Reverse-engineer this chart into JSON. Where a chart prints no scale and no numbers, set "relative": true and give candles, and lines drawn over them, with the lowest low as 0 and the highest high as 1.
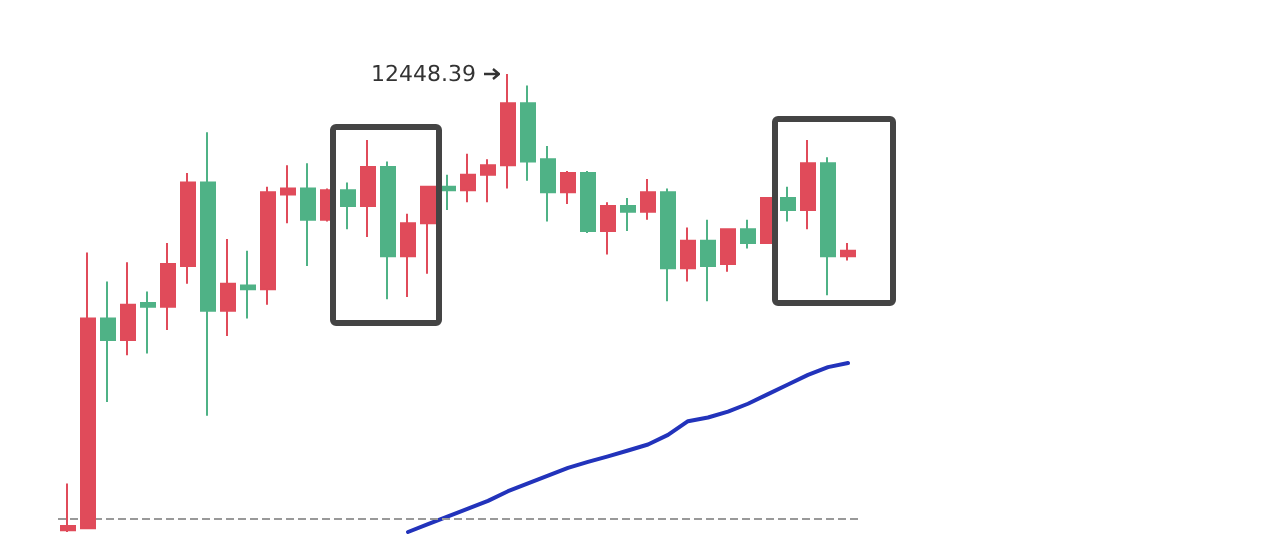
{
  "chart_data": {
    "type": "candlestick",
    "relative": true,
    "marker": "none",
    "categories": [
      null,
      null,
      null,
      null,
      null,
      null,
      null,
      null,
      null,
      null,
      null,
      null,
      null,
      null,
      null,
      null,
      null,
      null,
      null,
      null,
      null,
      null,
      null,
      null,
      null,
      null,
      null,
      null,
      null,
      null,
      null,
      null,
      null,
      null,
      null,
      null,
      null,
      null,
      null,
      null
    ],
    "ohlc": [
      [
        0.004,
        0.106,
        0,
        0.013
      ],
      [
        0.008,
        0.61,
        0.008,
        0.466
      ],
      [
        0.466,
        0.547,
        0.284,
        0.419
      ],
      [
        0.419,
        0.589,
        0.386,
        0.496
      ],
      [
        0.5,
        0.525,
        0.39,
        0.492
      ],
      [
        0.492,
        0.631,
        0.441,
        0.585
      ],
      [
        0.581,
        0.784,
        0.542,
        0.763
      ],
      [
        0.763,
        0.873,
        0.254,
        0.483
      ],
      [
        0.483,
        0.64,
        0.428,
        0.542
      ],
      [
        0.538,
        0.614,
        0.466,
        0.53
      ],
      [
        0.53,
        0.754,
        0.496,
        0.742
      ],
      [
        0.737,
        0.801,
        0.674,
        0.75
      ],
      [
        0.75,
        0.805,
        0.581,
        0.682
      ],
      [
        0.682,
        0.75,
        0.678,
        0.746
      ],
      [
        0.746,
        0.763,
        0.661,
        0.712
      ],
      [
        0.712,
        0.856,
        0.644,
        0.797
      ],
      [
        0.797,
        0.809,
        0.508,
        0.602
      ],
      [
        0.602,
        0.695,
        0.513,
        0.674
      ],
      [
        0.674,
        0.754,
        0.564,
        0.754
      ],
      [
        0.754,
        0.78,
        0.703,
        0.746
      ],
      [
        0.746,
        0.826,
        0.72,
        0.78
      ],
      [
        0.78,
        0.814,
        0.72,
        0.801
      ],
      [
        0.801,
        1,
        0.75,
        0.936
      ],
      [
        0.936,
        0.975,
        0.767,
        0.809
      ],
      [
        0.814,
        0.843,
        0.678,
        0.742
      ],
      [
        0.742,
        0.788,
        0.716,
        0.784
      ],
      [
        0.784,
        0.788,
        0.653,
        0.657
      ],
      [
        0.657,
        0.72,
        0.606,
        0.712
      ],
      [
        0.712,
        0.729,
        0.657,
        0.699
      ],
      [
        0.699,
        0.771,
        0.682,
        0.742
      ],
      [
        0.742,
        0.75,
        0.504,
        0.576
      ],
      [
        0.576,
        0.665,
        0.547,
        0.636
      ],
      [
        0.636,
        0.682,
        0.504,
        0.581
      ],
      [
        0.585,
        0.661,
        0.568,
        0.661
      ],
      [
        0.661,
        0.682,
        0.619,
        0.631
      ],
      [
        0.631,
        0.729,
        0.631,
        0.729
      ],
      [
        0.729,
        0.754,
        0.678,
        0.703
      ],
      [
        0.703,
        0.856,
        0.661,
        0.805
      ],
      [
        0.805,
        0.818,
        0.517,
        0.602
      ],
      [
        0.602,
        0.631,
        0.593,
        0.614
      ]
    ],
    "colors": [
      "#e04b5a",
      "#e04b5a",
      "#4fb286",
      "#e04b5a",
      "#4fb286",
      "#e04b5a",
      "#e04b5a",
      "#4fb286",
      "#e04b5a",
      "#4fb286",
      "#e04b5a",
      "#e04b5a",
      "#4fb286",
      "#e04b5a",
      "#4fb286",
      "#e04b5a",
      "#4fb286",
      "#e04b5a",
      "#e04b5a",
      "#4fb286",
      "#e04b5a",
      "#e04b5a",
      "#e04b5a",
      "#4fb286",
      "#4fb286",
      "#e04b5a",
      "#4fb286",
      "#e04b5a",
      "#4fb286",
      "#e04b5a",
      "#4fb286",
      "#e04b5a",
      "#4fb286",
      "#e04b5a",
      "#4fb286",
      "#e04b5a",
      "#4fb286",
      "#e04b5a",
      "#4fb286",
      "#e04b5a"
    ],
    "series": [
      {
        "type": "line",
        "color": "#2233bb",
        "values": [
          null,
          null,
          null,
          null,
          null,
          null,
          null,
          null,
          null,
          null,
          null,
          null,
          null,
          null,
          null,
          null,
          null,
          0,
          0.017,
          0.034,
          0.051,
          0.068,
          0.089,
          0.106,
          0.123,
          0.14,
          0.153,
          0.165,
          0.178,
          0.191,
          0.212,
          0.242,
          0.25,
          0.263,
          0.28,
          0.301,
          0.322,
          0.343,
          0.36,
          0.369
        ]
      }
    ],
    "ref_lines": [
      {
        "axis": "y",
        "value": 0.025,
        "color": "#999999",
        "line_style": "dashed"
      }
    ],
    "annotations": [
      "12448.39"
    ]
  }
}
